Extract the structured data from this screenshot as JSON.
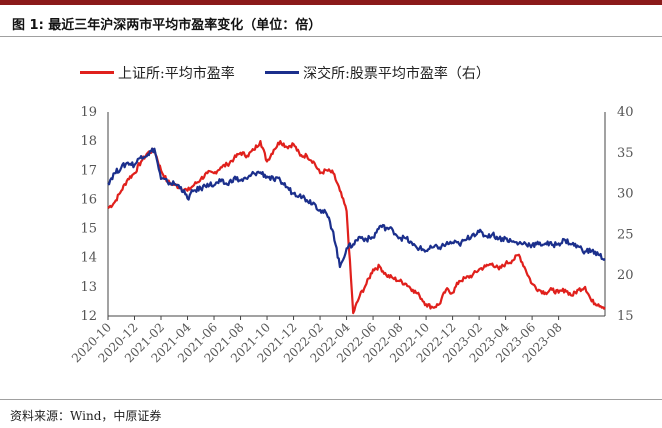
{
  "figure": {
    "title": "图 1:  最近三年沪深两市平均市盈率变化（单位：倍）",
    "source": "资料来源：Wind，中原证券"
  },
  "colors": {
    "topbar": "#8b1a1a",
    "series_sh": "#e0201c",
    "series_sz": "#1b2f8c",
    "axis_text": "#555555"
  },
  "chart_data": {
    "type": "line",
    "title": "",
    "xlabel": "",
    "ylabel_left": "",
    "ylabel_right": "",
    "ylim_left": [
      12,
      19
    ],
    "ylim_right": [
      15,
      40
    ],
    "yticks_left": [
      "19",
      "18",
      "17",
      "16",
      "15",
      "14",
      "13",
      "12"
    ],
    "yticks_right": [
      "40",
      "35",
      "30",
      "25",
      "20",
      "15"
    ],
    "xticks": [
      "2020-10",
      "2020-12",
      "2021-02",
      "2021-04",
      "2021-06",
      "2021-08",
      "2021-10",
      "2021-12",
      "2022-02",
      "2022-04",
      "2022-06",
      "2022-08",
      "2022-10",
      "2022-12",
      "2023-02",
      "2023-04",
      "2023-06",
      "2023-08"
    ],
    "grid": false,
    "legend_position": "top",
    "x": [
      0,
      0.5,
      1,
      1.5,
      2,
      2.5,
      3,
      3.5,
      4,
      4.5,
      5,
      5.5,
      6,
      6.5,
      7,
      7.5,
      8,
      8.5,
      9,
      9.5,
      10,
      10.5,
      11,
      11.5,
      12,
      12.5,
      13,
      13.5,
      14,
      14.5,
      15,
      15.5,
      16,
      16.5,
      17,
      17.5,
      18,
      18.5,
      19,
      19.5,
      20,
      20.5,
      21,
      21.5,
      22,
      22.5,
      23,
      23.5,
      24,
      24.5,
      25,
      25.5,
      26,
      26.5,
      27,
      27.5,
      28,
      28.5,
      29,
      29.5,
      30,
      30.5,
      31,
      31.5,
      32,
      32.5,
      33,
      33.5,
      34,
      34.5,
      35,
      35.5,
      36,
      36.5,
      37,
      37.5
    ],
    "series": [
      {
        "name": "上证所:平均市盈率",
        "axis": "left",
        "values": [
          15.7,
          15.9,
          16.3,
          16.7,
          16.9,
          17.3,
          17.6,
          17.7,
          17.0,
          16.6,
          16.5,
          16.4,
          16.3,
          16.5,
          16.7,
          16.9,
          16.9,
          17.1,
          17.2,
          17.4,
          17.6,
          17.5,
          17.7,
          18.0,
          17.3,
          17.7,
          18.0,
          17.8,
          17.9,
          17.5,
          17.5,
          17.3,
          16.9,
          17.0,
          16.9,
          16.3,
          15.6,
          12.1,
          12.7,
          13.1,
          13.6,
          13.7,
          13.4,
          13.3,
          13.2,
          13.1,
          12.9,
          12.7,
          12.4,
          12.3,
          12.4,
          12.9,
          12.8,
          13.2,
          13.3,
          13.4,
          13.6,
          13.7,
          13.8,
          13.6,
          13.8,
          13.9,
          14.1,
          13.6,
          13.1,
          12.9,
          12.8,
          12.9,
          12.8,
          12.9,
          12.7,
          12.9,
          13.0,
          12.5,
          12.4,
          12.3
        ]
      },
      {
        "name": "深交所:股票平均市盈率（右）",
        "axis": "right",
        "values": [
          31.3,
          32.5,
          33.2,
          33.8,
          33.5,
          34.6,
          34.8,
          35.5,
          31.8,
          31.4,
          31.2,
          30.8,
          29.4,
          30.4,
          30.6,
          31.2,
          31.0,
          31.5,
          31.1,
          31.9,
          31.6,
          31.8,
          32.5,
          32.6,
          32.1,
          31.7,
          31.6,
          30.8,
          30.0,
          29.9,
          29.2,
          28.9,
          28.0,
          27.5,
          25.3,
          21.0,
          23.3,
          23.8,
          24.7,
          24.4,
          24.6,
          26.0,
          25.8,
          25.5,
          24.6,
          24.5,
          23.7,
          23.3,
          23.0,
          23.4,
          23.4,
          23.8,
          24.0,
          23.8,
          24.3,
          25.0,
          25.3,
          24.8,
          25.0,
          24.5,
          24.5,
          24.1,
          23.9,
          23.9,
          23.7,
          23.8,
          23.9,
          23.7,
          23.9,
          24.3,
          23.8,
          23.5,
          22.9,
          23.0,
          22.5,
          22.0
        ]
      }
    ]
  }
}
